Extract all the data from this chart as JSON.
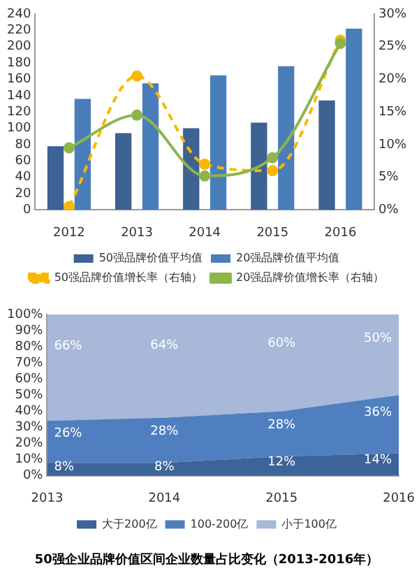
{
  "chart_data": [
    {
      "type": "bar",
      "categories": [
        "2012",
        "2013",
        "2014",
        "2015",
        "2016"
      ],
      "series": [
        {
          "name": "50强品牌价值平均值",
          "color": "#3d6293",
          "values": [
            78,
            94,
            100,
            107,
            134
          ]
        },
        {
          "name": "20强品牌价值平均值",
          "color": "#4a7ebb",
          "values": [
            136,
            155,
            165,
            176,
            222
          ]
        },
        {
          "name": "50强品牌价值增长率（右轴）",
          "type": "line",
          "axis": "y2",
          "color": "#f9b800",
          "line_style": "dashed",
          "marker": "circle",
          "values": [
            0.5,
            20.5,
            7,
            6,
            26
          ]
        },
        {
          "name": "20强品牌价值增长率（右轴）",
          "type": "line",
          "axis": "y2",
          "color": "#8db54a",
          "line_style": "solid",
          "marker": "circle",
          "values": [
            9.5,
            14.5,
            5.2,
            8,
            25.5
          ]
        }
      ],
      "ylim": [
        0,
        240
      ],
      "yticks": [
        0,
        20,
        40,
        60,
        80,
        100,
        120,
        140,
        160,
        180,
        200,
        220,
        240
      ],
      "y2lim": [
        0,
        30
      ],
      "y2ticks": [
        {
          "value": 0,
          "label": "0%"
        },
        {
          "value": 5,
          "label": "5%"
        },
        {
          "value": 10,
          "label": "10%"
        },
        {
          "value": 15,
          "label": "15%"
        },
        {
          "value": 20,
          "label": "20%"
        },
        {
          "value": 25,
          "label": "25%"
        },
        {
          "value": 30,
          "label": "30%"
        }
      ],
      "grid": false,
      "legend": "bottom"
    },
    {
      "type": "area",
      "stacked": true,
      "title": "50强企业品牌价值区间企业数量占比变化（2013-2016年）",
      "categories": [
        "2013",
        "2014",
        "2015",
        "2016"
      ],
      "series": [
        {
          "name": "大于200亿",
          "color": "#3d6499",
          "values": [
            8,
            8,
            12,
            14
          ],
          "value_labels": [
            "8%",
            "8%",
            "12%",
            "14%"
          ]
        },
        {
          "name": "100-200亿",
          "color": "#4f7fc0",
          "values": [
            26,
            28,
            28,
            36
          ],
          "value_labels": [
            "26%",
            "28%",
            "28%",
            "36%"
          ]
        },
        {
          "name": "小于100亿",
          "color": "#a7b8d8",
          "values": [
            66,
            64,
            60,
            50
          ],
          "value_labels": [
            "66%",
            "64%",
            "60%",
            "50%"
          ]
        }
      ],
      "ylim": [
        0,
        100
      ],
      "yticks": [
        {
          "value": 0,
          "label": "0%"
        },
        {
          "value": 10,
          "label": "10%"
        },
        {
          "value": 20,
          "label": "20%"
        },
        {
          "value": 30,
          "label": "30%"
        },
        {
          "value": 40,
          "label": "40%"
        },
        {
          "value": 50,
          "label": "50%"
        },
        {
          "value": 60,
          "label": "60%"
        },
        {
          "value": 70,
          "label": "70%"
        },
        {
          "value": 80,
          "label": "80%"
        },
        {
          "value": 90,
          "label": "90%"
        },
        {
          "value": 100,
          "label": "100%"
        }
      ],
      "grid": false,
      "legend": "bottom"
    }
  ]
}
